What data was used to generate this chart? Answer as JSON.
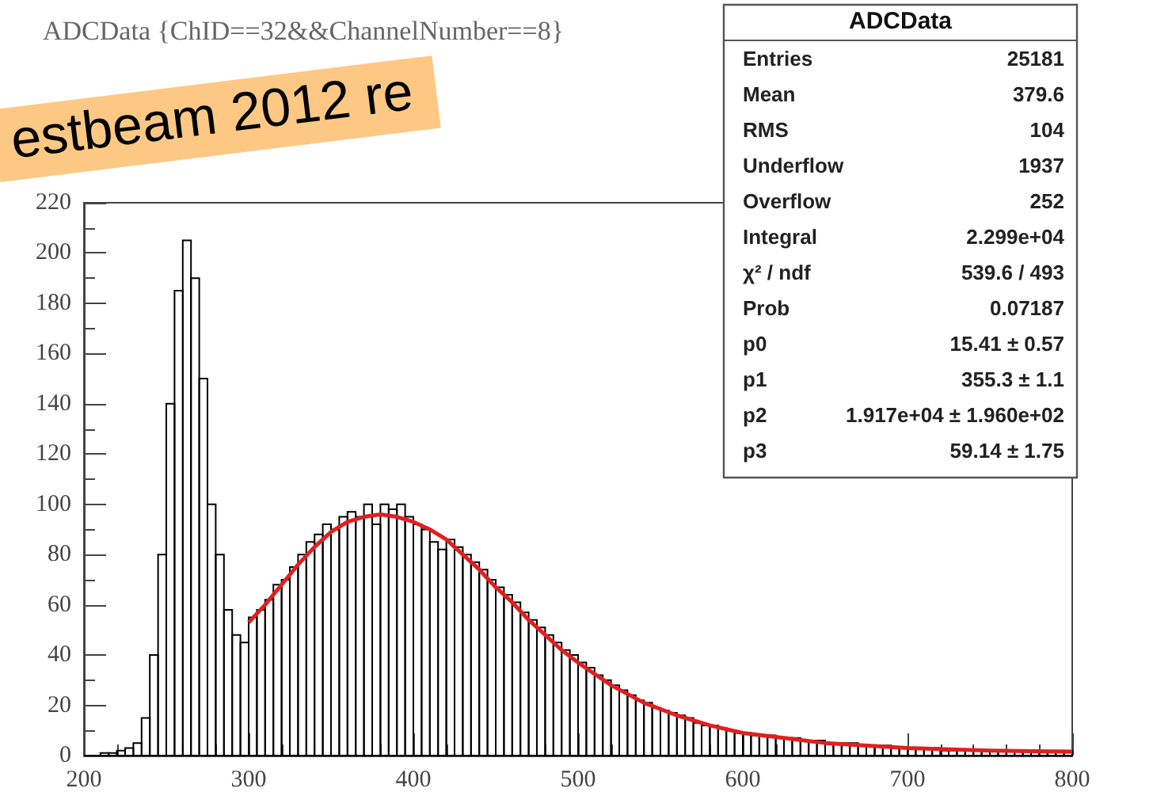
{
  "chart_data": {
    "type": "histogram",
    "title": "ADCData {ChID==32&&ChannelNumber==8}",
    "annotations": [
      "estbeam 2012 re",
      "ADCData",
      "Entries",
      "25181",
      "Mean",
      "379.6",
      "RMS",
      "104",
      "Underflow",
      "1937",
      "Overflow",
      "252",
      "Integral",
      "2.299e+04",
      "χ² / ndf",
      "539.6 / 493",
      "Prob",
      "0.07187",
      "p0",
      "15.41 ± 0.57",
      "p1",
      "355.3 ± 1.1",
      "p2",
      "1.917e+04 ± 1.960e+02",
      "p3",
      "59.14 ± 1.75"
    ],
    "bins": [
      200,
      205,
      210,
      215,
      220,
      225,
      230,
      235,
      240,
      245,
      250,
      255,
      260,
      265,
      270,
      275,
      280,
      285,
      290,
      295,
      300,
      305,
      310,
      315,
      320,
      325,
      330,
      335,
      340,
      345,
      350,
      355,
      360,
      365,
      370,
      375,
      380,
      385,
      390,
      395,
      400,
      405,
      410,
      415,
      420,
      425,
      430,
      435,
      440,
      445,
      450,
      455,
      460,
      465,
      470,
      475,
      480,
      485,
      490,
      495,
      500,
      505,
      510,
      515,
      520,
      525,
      530,
      535,
      540,
      545,
      550,
      555,
      560,
      565,
      570,
      575,
      580,
      585,
      590,
      595,
      600,
      605,
      610,
      615,
      620,
      625,
      630,
      635,
      640,
      645,
      650,
      655,
      660,
      665,
      670,
      675,
      680,
      685,
      690,
      695,
      700,
      705,
      710,
      715,
      720,
      725,
      730,
      735,
      740,
      745,
      750,
      755,
      760,
      765,
      770,
      775,
      780,
      785,
      790,
      795,
      800
    ],
    "values": [
      0,
      0,
      1,
      1,
      2,
      3,
      5,
      15,
      40,
      80,
      140,
      185,
      205,
      190,
      150,
      100,
      80,
      58,
      48,
      45,
      55,
      58,
      62,
      68,
      70,
      75,
      80,
      85,
      88,
      92,
      90,
      95,
      97,
      95,
      100,
      92,
      100,
      98,
      100,
      95,
      92,
      90,
      85,
      82,
      86,
      83,
      80,
      77,
      74,
      70,
      67,
      64,
      61,
      57,
      54,
      51,
      48,
      45,
      42,
      40,
      37,
      35,
      32,
      30,
      28,
      26,
      24,
      22,
      21,
      19,
      18,
      17,
      16,
      15,
      13,
      12,
      12,
      11,
      10,
      9,
      9,
      8,
      8,
      8,
      7,
      7,
      7,
      6,
      6,
      6,
      5,
      5,
      5,
      5,
      4,
      4,
      4,
      4,
      3,
      3,
      3,
      3,
      3,
      3,
      2,
      2,
      2,
      2,
      2,
      2,
      2,
      2,
      2,
      2,
      2,
      2,
      2,
      2,
      2,
      2
    ],
    "color": "#000000",
    "series": [
      {
        "type": "line",
        "color": "#e02020",
        "x": [
          300,
          310,
          320,
          330,
          340,
          350,
          360,
          370,
          380,
          390,
          400,
          410,
          420,
          430,
          440,
          450,
          460,
          470,
          480,
          490,
          500,
          520,
          540,
          560,
          580,
          600,
          625,
          650,
          700,
          750,
          800
        ],
        "values": [
          53,
          60,
          68,
          76,
          83,
          89,
          93,
          95,
          96,
          95,
          93,
          90,
          86,
          80,
          74,
          67,
          61,
          54,
          48,
          42,
          37,
          28,
          21,
          16,
          12,
          9,
          7,
          5,
          3,
          2,
          1.5
        ]
      }
    ],
    "xlim": [
      200,
      800
    ],
    "xticks": [
      200,
      300,
      400,
      500,
      600,
      700,
      800
    ],
    "ylim": [
      0,
      220
    ],
    "yticks": [
      0,
      20,
      40,
      60,
      80,
      100,
      120,
      140,
      160,
      180,
      200,
      220
    ],
    "grid": false,
    "legend": false
  }
}
